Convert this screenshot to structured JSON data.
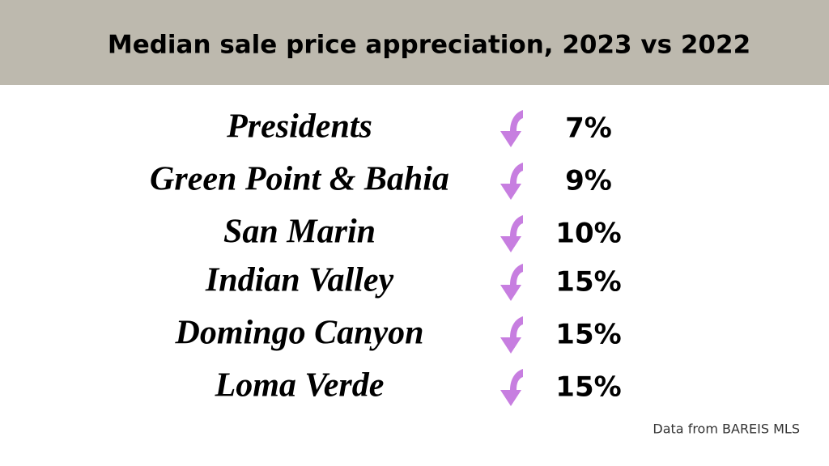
{
  "header": {
    "title": "Median sale price appreciation, 2023 vs 2022"
  },
  "rows": [
    {
      "name": "Presidents",
      "change": "7%"
    },
    {
      "name": "Green Point & Bahia",
      "change": "9%"
    },
    {
      "name": "San Marin",
      "change": "10%"
    },
    {
      "name": "Indian Valley",
      "change": "15%"
    },
    {
      "name": "Domingo Canyon",
      "change": "15%"
    },
    {
      "name": "Loma Verde",
      "change": "15%"
    }
  ],
  "footer": {
    "source": "Data from BAREIS MLS"
  }
}
